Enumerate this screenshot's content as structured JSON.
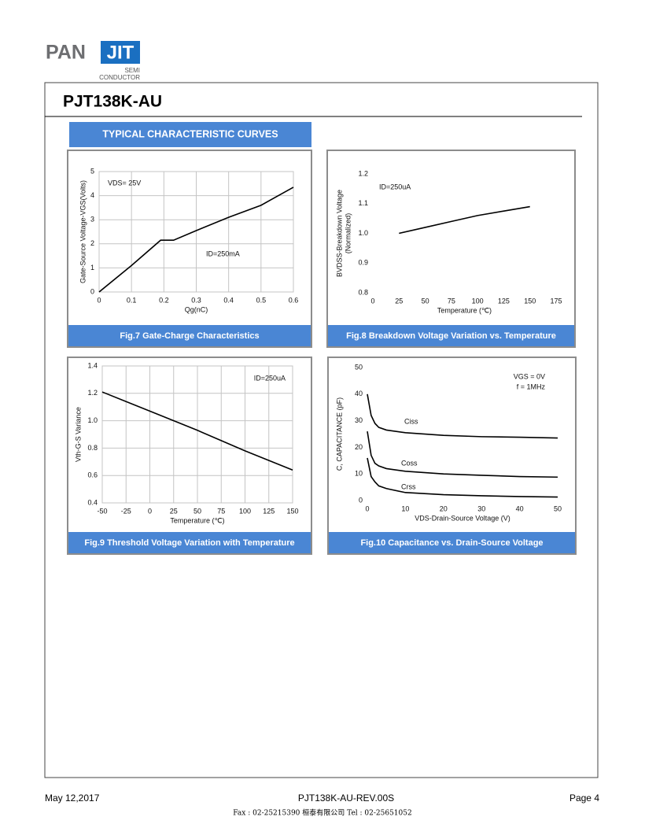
{
  "header": {
    "logo_left": "PAN",
    "logo_right": "JIT",
    "logo_sub": [
      "SEMI",
      "CONDUCTOR"
    ],
    "title": "PJT138K-AU"
  },
  "section_title": "TYPICAL CHARACTERISTIC CURVES",
  "chart_data": [
    {
      "type": "line",
      "caption": "Fig.7 Gate-Charge Characteristics",
      "ylabel": [
        "Gate-Source Voltage-VGS(Volts)"
      ],
      "xlabel": "Qg(nC)",
      "annotations": [
        "VDS= 25V",
        "ID=250mA"
      ],
      "grid": true,
      "color": "#000000",
      "x": [
        0,
        0.1,
        0.19,
        0.23,
        0.3,
        0.4,
        0.5,
        0.6
      ],
      "values": [
        0,
        1.1,
        2.15,
        2.15,
        2.55,
        3.1,
        3.6,
        4.35
      ],
      "xlim": [
        0,
        0.6
      ],
      "xticks": [
        0,
        0.1,
        0.2,
        0.3,
        0.4,
        0.5,
        0.6
      ],
      "ylim": [
        0,
        5
      ],
      "yticks": [
        0,
        1,
        2,
        3,
        4,
        5
      ]
    },
    {
      "type": "line",
      "caption": "Fig.8 Breakdown Voltage Variation vs. Temperature",
      "ylabel": [
        "BVDSS-Breakdown Voltage",
        "(Normalized)"
      ],
      "xlabel": "Temperature (℃)",
      "annotations": [
        "ID=250uA"
      ],
      "grid": false,
      "color": "#000000",
      "x": [
        25,
        50,
        75,
        100,
        125,
        150
      ],
      "values": [
        1.0,
        1.02,
        1.04,
        1.06,
        1.075,
        1.09
      ],
      "xlim": [
        0,
        175
      ],
      "xticks": [
        0,
        25,
        50,
        75,
        100,
        125,
        150,
        175
      ],
      "ylim": [
        0.8,
        1.2
      ],
      "yticks": [
        0.8,
        0.9,
        {
          "value": 1,
          "label": "1.0"
        },
        1.1,
        1.2
      ]
    },
    {
      "type": "line",
      "caption": "Fig.9 Threshold Voltage Variation with Temperature",
      "ylabel": [
        "Vth-G-S Variance"
      ],
      "xlabel": "Temperature (℃)",
      "annotations": [
        "ID=250uA"
      ],
      "grid": true,
      "color": "#000000",
      "x": [
        -50,
        0,
        50,
        100,
        150
      ],
      "values": [
        1.21,
        1.07,
        0.93,
        0.78,
        0.64
      ],
      "xlim": [
        -50,
        150
      ],
      "xticks": [
        -50,
        -25,
        0,
        25,
        50,
        75,
        100,
        125,
        150
      ],
      "ylim": [
        0.4,
        1.4
      ],
      "yticks": [
        0.4,
        0.6,
        0.8,
        {
          "value": 1,
          "label": "1.0"
        },
        1.2,
        1.4
      ]
    },
    {
      "type": "line",
      "caption": "Fig.10 Capacitance vs. Drain-Source Voltage",
      "ylabel": [
        "C, CAPACITANCE  (pF)"
      ],
      "xlabel": "VDS-Drain-Source  Voltage  (V)",
      "annotations": [
        "VGS = 0V",
        "f = 1MHz"
      ],
      "grid": false,
      "x": [
        0,
        1,
        2,
        3,
        5,
        10,
        20,
        30,
        40,
        50
      ],
      "series": [
        {
          "name": "Ciss",
          "color": "#000000",
          "values": [
            40,
            32,
            29,
            27.5,
            26.5,
            25.5,
            24.5,
            24,
            23.8,
            23.5
          ]
        },
        {
          "name": "Coss",
          "color": "#000000",
          "values": [
            26,
            17,
            14,
            13,
            12,
            11,
            10,
            9.5,
            9,
            8.8
          ]
        },
        {
          "name": "Crss",
          "color": "#000000",
          "values": [
            16,
            9,
            7,
            5.5,
            4.5,
            3,
            2.2,
            1.8,
            1.5,
            1.3
          ]
        }
      ],
      "xlim": [
        0,
        50
      ],
      "xticks": [
        0,
        10,
        20,
        30,
        40,
        50
      ],
      "ylim": [
        0,
        50
      ],
      "yticks": [
        0,
        10,
        20,
        30,
        40,
        50
      ]
    }
  ],
  "footer": {
    "date": "May 12,2017",
    "doc": "PJT138K-AU-REV.00S",
    "page": "Page 4",
    "contact": "Fax : 02-25215390    桓泰有限公司    Tel : 02-25651052"
  }
}
